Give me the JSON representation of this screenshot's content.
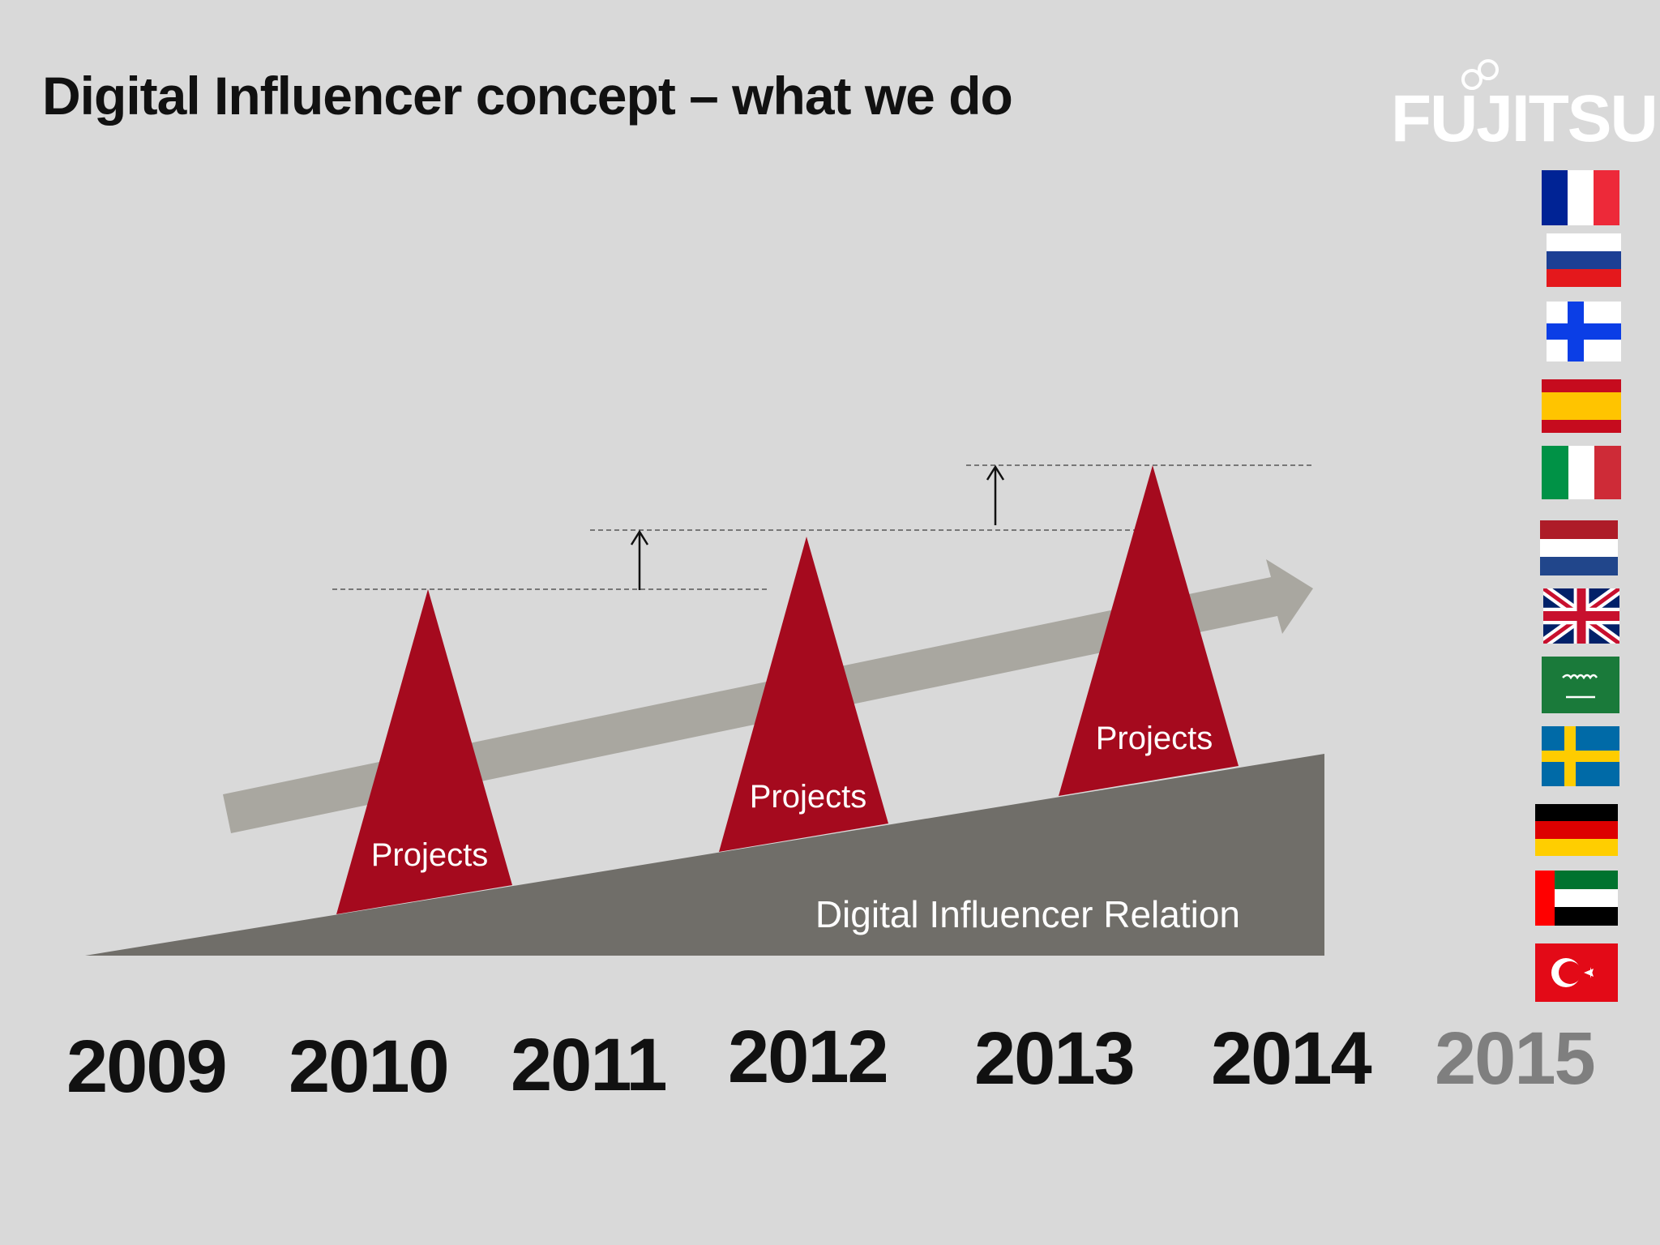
{
  "title": "Digital Influencer concept – what we do",
  "logo": {
    "text": "FUJITSU"
  },
  "diagram": {
    "base_label": "Digital Influencer Relation",
    "peak_label": "Projects",
    "peaks": [
      {
        "label": "Projects",
        "year": "2010"
      },
      {
        "label": "Projects",
        "year": "2012"
      },
      {
        "label": "Projects",
        "year": "2013"
      }
    ],
    "colors": {
      "peak": "#a50a1e",
      "base": "#706e69",
      "trend_arrow": "#a9a7a0",
      "background": "#d9d9d9"
    }
  },
  "timeline": {
    "years": [
      "2009",
      "2010",
      "2011",
      "2012",
      "2013",
      "2014",
      "2015"
    ],
    "future_year": "2015"
  },
  "flags": [
    {
      "country": "France"
    },
    {
      "country": "Russia"
    },
    {
      "country": "Finland"
    },
    {
      "country": "Spain"
    },
    {
      "country": "Italy"
    },
    {
      "country": "Netherlands"
    },
    {
      "country": "United Kingdom"
    },
    {
      "country": "Saudi Arabia"
    },
    {
      "country": "Sweden"
    },
    {
      "country": "Germany"
    },
    {
      "country": "United Arab Emirates"
    },
    {
      "country": "Turkey"
    }
  ]
}
